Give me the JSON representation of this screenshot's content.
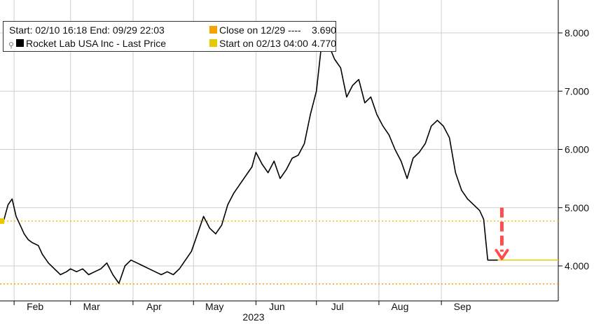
{
  "legend": {
    "range_text": "Start: 02/10 16:18 End: 09/29 22:03",
    "close_label": "Close on 12/29 ----",
    "close_value": "3.690",
    "series_label": "Rocket Lab USA Inc - Last Price",
    "start_label": "Start on 02/13 04:00",
    "start_value": "4.770",
    "pin_icon": "pin-icon",
    "colors": {
      "price": "#000000",
      "close": "#f5a300",
      "start": "#e8c800",
      "arrow": "#ff4d4d"
    }
  },
  "chart_data": {
    "type": "line",
    "title": "",
    "xlabel": "2023",
    "ylabel": "",
    "ylim": [
      3.5,
      8.5
    ],
    "y_ticks": [
      "4.000",
      "5.000",
      "6.000",
      "7.000",
      "8.000"
    ],
    "y_tick_values": [
      4.0,
      5.0,
      6.0,
      7.0,
      8.0
    ],
    "x_ticks": [
      "Feb",
      "Mar",
      "Apr",
      "May",
      "Jun",
      "Jul",
      "Aug",
      "Sep"
    ],
    "x_tick_dates": [
      "2023-02-01",
      "2023-03-01",
      "2023-04-01",
      "2023-05-01",
      "2023-06-01",
      "2023-07-01",
      "2023-08-01",
      "2023-09-01"
    ],
    "x_range": [
      "2023-01-25",
      "2023-10-29"
    ],
    "year_label": "2023",
    "grid": true,
    "legend_position": "top-left",
    "series": [
      {
        "name": "Rocket Lab USA Inc - Last Price",
        "x": [
          "2023-01-25",
          "2023-01-27",
          "2023-01-29",
          "2023-01-31",
          "2023-02-02",
          "2023-02-04",
          "2023-02-06",
          "2023-02-08",
          "2023-02-10",
          "2023-02-13",
          "2023-02-15",
          "2023-02-18",
          "2023-02-21",
          "2023-02-24",
          "2023-02-27",
          "2023-03-01",
          "2023-03-04",
          "2023-03-07",
          "2023-03-10",
          "2023-03-13",
          "2023-03-16",
          "2023-03-19",
          "2023-03-22",
          "2023-03-25",
          "2023-03-28",
          "2023-03-31",
          "2023-04-03",
          "2023-04-06",
          "2023-04-09",
          "2023-04-12",
          "2023-04-15",
          "2023-04-18",
          "2023-04-21",
          "2023-04-24",
          "2023-04-27",
          "2023-04-30",
          "2023-05-03",
          "2023-05-06",
          "2023-05-09",
          "2023-05-12",
          "2023-05-15",
          "2023-05-18",
          "2023-05-21",
          "2023-05-24",
          "2023-05-27",
          "2023-05-30",
          "2023-06-01",
          "2023-06-04",
          "2023-06-07",
          "2023-06-10",
          "2023-06-13",
          "2023-06-16",
          "2023-06-19",
          "2023-06-22",
          "2023-06-25",
          "2023-06-28",
          "2023-07-01",
          "2023-07-04",
          "2023-07-07",
          "2023-07-10",
          "2023-07-13",
          "2023-07-16",
          "2023-07-19",
          "2023-07-22",
          "2023-07-25",
          "2023-07-28",
          "2023-07-31",
          "2023-08-03",
          "2023-08-06",
          "2023-08-09",
          "2023-08-12",
          "2023-08-15",
          "2023-08-18",
          "2023-08-21",
          "2023-08-24",
          "2023-08-27",
          "2023-08-30",
          "2023-09-02",
          "2023-09-05",
          "2023-09-08",
          "2023-09-11",
          "2023-09-14",
          "2023-09-17",
          "2023-09-20",
          "2023-09-22",
          "2023-09-24",
          "2023-09-27",
          "2023-09-29"
        ],
        "values": [
          4.75,
          4.8,
          5.05,
          5.15,
          4.85,
          4.7,
          4.55,
          4.45,
          4.4,
          4.35,
          4.2,
          4.05,
          3.95,
          3.85,
          3.9,
          3.95,
          3.9,
          3.95,
          3.85,
          3.9,
          3.95,
          4.05,
          3.85,
          3.7,
          4.0,
          4.1,
          4.05,
          4.0,
          3.95,
          3.9,
          3.85,
          3.9,
          3.85,
          3.95,
          4.1,
          4.25,
          4.55,
          4.85,
          4.65,
          4.55,
          4.7,
          5.05,
          5.25,
          5.4,
          5.55,
          5.7,
          5.95,
          5.75,
          5.6,
          5.8,
          5.5,
          5.65,
          5.85,
          5.9,
          6.1,
          6.6,
          7.0,
          7.95,
          7.8,
          7.55,
          7.4,
          6.9,
          7.1,
          7.2,
          6.8,
          6.9,
          6.6,
          6.4,
          6.25,
          6.0,
          5.8,
          5.5,
          5.85,
          5.95,
          6.1,
          6.4,
          6.5,
          6.4,
          6.2,
          5.6,
          5.3,
          5.15,
          5.05,
          4.95,
          4.8,
          4.1,
          4.1,
          4.1
        ]
      }
    ],
    "reference_lines": [
      {
        "label": "Start on 02/13 04:00",
        "value": 4.77,
        "style": "dotted"
      },
      {
        "label": "Close on 12/29",
        "value": 3.69,
        "style": "dotted"
      }
    ],
    "annotations": [
      {
        "type": "dashed-down-arrow",
        "from": 5.0,
        "to": 4.1,
        "date": "2023-10-01"
      }
    ]
  }
}
